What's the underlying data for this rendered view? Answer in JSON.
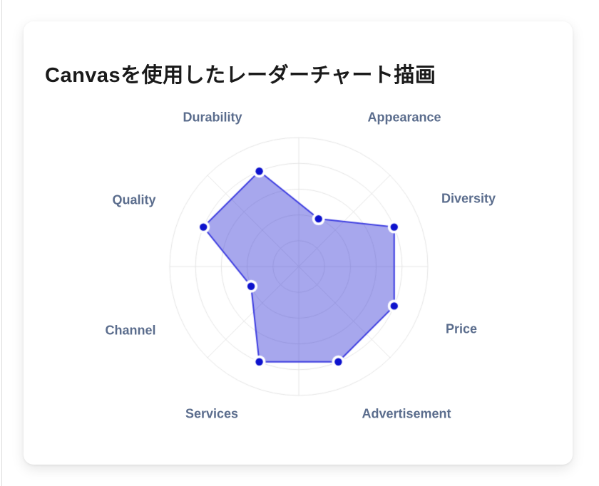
{
  "page": {
    "title": "Canvasを使用したレーダーチャート描画"
  },
  "chart_data": {
    "type": "radar",
    "title": "Canvasを使用したレーダーチャート描画",
    "categories": [
      "Durability",
      "Appearance",
      "Diversity",
      "Price",
      "Advertisement",
      "Services",
      "Channel",
      "Quality"
    ],
    "values": [
      80,
      40,
      80,
      80,
      80,
      80,
      40,
      80
    ],
    "max": 100,
    "rings": 5,
    "start_angle_deg_from_north": -22.5,
    "clockwise": true,
    "grid_spoke_offset_deg": 22.5,
    "legend_position": "none",
    "colors": {
      "fill": "rgba(60,60,215,0.45)",
      "stroke": "#3c3ce0",
      "point": "#0d12cd",
      "point_halo": "#ffffff",
      "grid": "#e4e4e4",
      "label": "#5b6d8d",
      "title": "#1a1a1a"
    }
  }
}
